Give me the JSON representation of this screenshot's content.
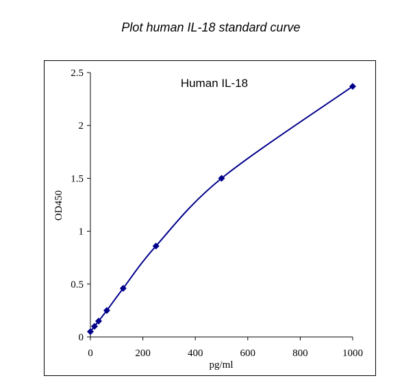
{
  "chart_data": {
    "type": "line",
    "title": "Plot human IL-18 standard curve",
    "annotation": "Human IL-18",
    "x_label": "pg/ml",
    "y_label": "OD450",
    "x": [
      0,
      15.6,
      31.25,
      62.5,
      125,
      250,
      500,
      1000
    ],
    "series": [
      {
        "name": "Human IL-18",
        "color": "#00008b",
        "values": [
          0.05,
          0.1,
          0.15,
          0.25,
          0.46,
          0.86,
          1.5,
          2.37
        ]
      }
    ],
    "xlim": [
      0,
      1000
    ],
    "xticks": [
      0,
      200,
      400,
      600,
      800,
      1000
    ],
    "ylim": [
      0,
      2.5
    ],
    "yticks": [
      0,
      0.5,
      1,
      1.5,
      2,
      2.5
    ]
  }
}
